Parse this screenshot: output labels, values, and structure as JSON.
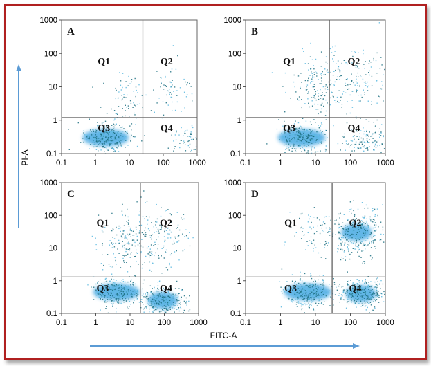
{
  "figure": {
    "x_axis_title": "FITC-A",
    "y_axis_title": "PI-A"
  },
  "colors": {
    "frame": "#b02020",
    "arrow": "#5b9bd5",
    "dot_dark": "#1c6e80",
    "dot_light": "#5ab8e0",
    "dense_blue": "#2f9ee0",
    "gate": "#555555"
  },
  "chart_data": [
    {
      "type": "scatter",
      "panel": "A",
      "xscale": "log",
      "yscale": "log",
      "xlim": [
        0.1,
        1000
      ],
      "ylim": [
        0.1,
        1000
      ],
      "x_ticks": [
        "0.1",
        "1",
        "10",
        "100",
        "1000"
      ],
      "y_ticks": [
        "0.1",
        "1",
        "10",
        "100",
        "1000"
      ],
      "gate_x": 25,
      "gate_y": 1.2,
      "quadrants": [
        "Q1",
        "Q2",
        "Q3",
        "Q4"
      ],
      "populations": [
        {
          "quadrant": "Q3",
          "x": 2,
          "y": 0.3,
          "density": "high"
        },
        {
          "quadrant": "Q1",
          "x": 7,
          "y": 4,
          "density": "low"
        },
        {
          "quadrant": "Q2",
          "x": 150,
          "y": 10,
          "density": "low"
        },
        {
          "quadrant": "Q4",
          "x": 500,
          "y": 0.25,
          "density": "low"
        }
      ]
    },
    {
      "type": "scatter",
      "panel": "B",
      "xscale": "log",
      "yscale": "log",
      "xlim": [
        0.1,
        1000
      ],
      "ylim": [
        0.1,
        1000
      ],
      "x_ticks": [
        "0.1",
        "1",
        "10",
        "100",
        "1000"
      ],
      "y_ticks": [
        "0.1",
        "1",
        "10",
        "100",
        "1000"
      ],
      "gate_x": 25,
      "gate_y": 1.2,
      "quadrants": [
        "Q1",
        "Q2",
        "Q3",
        "Q4"
      ],
      "populations": [
        {
          "quadrant": "Q3",
          "x": 4,
          "y": 0.3,
          "density": "high"
        },
        {
          "quadrant": "Q1",
          "x": 12,
          "y": 10,
          "density": "medium"
        },
        {
          "quadrant": "Q2",
          "x": 150,
          "y": 20,
          "density": "medium"
        },
        {
          "quadrant": "Q4",
          "x": 300,
          "y": 0.25,
          "density": "medium"
        }
      ]
    },
    {
      "type": "scatter",
      "panel": "C",
      "xscale": "log",
      "yscale": "log",
      "xlim": [
        0.1,
        1000
      ],
      "ylim": [
        0.1,
        1000
      ],
      "x_ticks": [
        "0.1",
        "1",
        "10",
        "100",
        "1000"
      ],
      "y_ticks": [
        "0.1",
        "1",
        "10",
        "100",
        "1000"
      ],
      "gate_x": 20,
      "gate_y": 1.3,
      "quadrants": [
        "Q1",
        "Q2",
        "Q3",
        "Q4"
      ],
      "populations": [
        {
          "quadrant": "Q3",
          "x": 4,
          "y": 0.45,
          "density": "high"
        },
        {
          "quadrant": "Q1",
          "x": 8,
          "y": 15,
          "density": "medium"
        },
        {
          "quadrant": "Q2",
          "x": 70,
          "y": 20,
          "density": "medium"
        },
        {
          "quadrant": "Q4",
          "x": 90,
          "y": 0.25,
          "density": "high"
        }
      ]
    },
    {
      "type": "scatter",
      "panel": "D",
      "xscale": "log",
      "yscale": "log",
      "xlim": [
        0.1,
        1000
      ],
      "ylim": [
        0.1,
        1000
      ],
      "x_ticks": [
        "0.1",
        "1",
        "10",
        "100",
        "1000"
      ],
      "y_ticks": [
        "0.1",
        "1",
        "10",
        "100",
        "1000"
      ],
      "gate_x": 30,
      "gate_y": 1.3,
      "quadrants": [
        "Q1",
        "Q2",
        "Q3",
        "Q4"
      ],
      "populations": [
        {
          "quadrant": "Q3",
          "x": 6,
          "y": 0.45,
          "density": "high"
        },
        {
          "quadrant": "Q1",
          "x": 10,
          "y": 30,
          "density": "low"
        },
        {
          "quadrant": "Q2",
          "x": 150,
          "y": 30,
          "density": "high"
        },
        {
          "quadrant": "Q4",
          "x": 200,
          "y": 0.4,
          "density": "high"
        }
      ]
    }
  ]
}
